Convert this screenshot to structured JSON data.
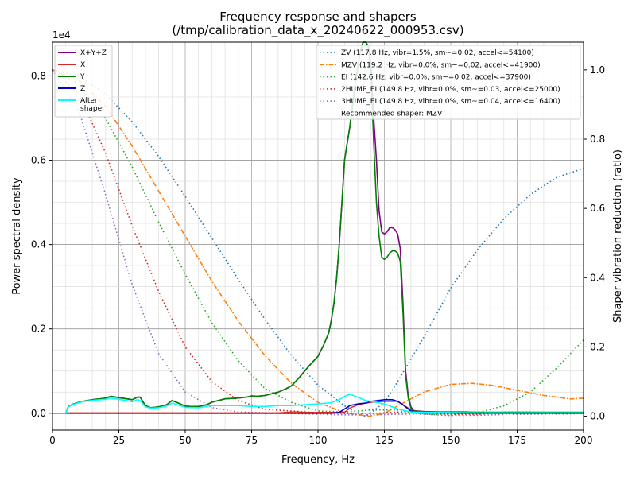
{
  "chart_data": {
    "type": "line",
    "title": "Frequency response and shapers",
    "subtitle": "(/tmp/calibration_data_x_20240622_000953.csv)",
    "xlabel": "Frequency, Hz",
    "ylabel_left": "Power spectral density",
    "ylabel_right": "Shaper vibration reduction (ratio)",
    "multiplier": "1e4",
    "xlim": [
      0,
      200
    ],
    "ylim_left": [
      -0.04,
      0.88
    ],
    "ylim_right": [
      -0.04,
      1.08
    ],
    "x_ticks": [
      0,
      25,
      50,
      75,
      100,
      125,
      150,
      175,
      200
    ],
    "x_tick_labels": [
      "0",
      "25",
      "50",
      "75",
      "100",
      "125",
      "150",
      "175",
      "200"
    ],
    "y_left_ticks": [
      0,
      0.2,
      0.4,
      0.6,
      0.8
    ],
    "y_left_tick_labels": [
      "0.0",
      "0.2",
      "0.4",
      "0.6",
      "0.8"
    ],
    "y_right_ticks": [
      0,
      0.2,
      0.4,
      0.6,
      0.8,
      1.0
    ],
    "y_right_tick_labels": [
      "0.0",
      "0.2",
      "0.4",
      "0.6",
      "0.8",
      "1.0"
    ],
    "grid": true,
    "legend_left": {
      "position": "top-left",
      "entries": [
        "X+Y+Z",
        "X",
        "Y",
        "Z",
        "After\nshaper"
      ]
    },
    "legend_right": {
      "position": "top-right",
      "entries": [
        "ZV (117.8 Hz, vibr=1.5%, sm~=0.02, accel<=54100)",
        "MZV (119.2 Hz, vibr=0.0%, sm~=0.02, accel<=41900)",
        "EI (142.6 Hz, vibr=0.0%, sm~=0.02, accel<=37900)",
        "2HUMP_EI (149.8 Hz, vibr=0.0%, sm~=0.03, accel<=25000)",
        "3HUMP_EI (149.8 Hz, vibr=0.0%, sm~=0.04, accel<=16400)"
      ],
      "note": "Recommended shaper: MZV"
    },
    "psd_series": [
      {
        "name": "X+Y+Z",
        "color": "#800080",
        "width": 1.6,
        "x": [
          0,
          5,
          6,
          8,
          10,
          13,
          16,
          18,
          20,
          22,
          25,
          28,
          30,
          32,
          33,
          35,
          37,
          40,
          43,
          45,
          47,
          50,
          52,
          55,
          58,
          60,
          65,
          70,
          73,
          75,
          77,
          80,
          83,
          85,
          88,
          90,
          93,
          95,
          97,
          100,
          102,
          104,
          105,
          106,
          107,
          108,
          109,
          110,
          111,
          112,
          113,
          114,
          115,
          116,
          117,
          118,
          119,
          120,
          121,
          122,
          123,
          124,
          125,
          126,
          127,
          128,
          129,
          130,
          131,
          132,
          133,
          134,
          135,
          136,
          140,
          145,
          150,
          155,
          160,
          170,
          180,
          190,
          200
        ],
        "y": [
          0,
          0,
          0.016,
          0.022,
          0.026,
          0.03,
          0.033,
          0.034,
          0.036,
          0.04,
          0.037,
          0.034,
          0.032,
          0.038,
          0.038,
          0.018,
          0.013,
          0.015,
          0.02,
          0.03,
          0.025,
          0.017,
          0.016,
          0.016,
          0.02,
          0.026,
          0.034,
          0.036,
          0.038,
          0.041,
          0.04,
          0.042,
          0.047,
          0.05,
          0.058,
          0.065,
          0.085,
          0.1,
          0.115,
          0.135,
          0.16,
          0.19,
          0.22,
          0.26,
          0.32,
          0.4,
          0.5,
          0.6,
          0.64,
          0.68,
          0.73,
          0.78,
          0.82,
          0.86,
          0.88,
          0.88,
          0.87,
          0.82,
          0.7,
          0.6,
          0.48,
          0.43,
          0.425,
          0.43,
          0.44,
          0.44,
          0.435,
          0.425,
          0.39,
          0.26,
          0.1,
          0.04,
          0.015,
          0.006,
          0.004,
          0.003,
          0.003,
          0.003,
          0.002,
          0.002,
          0.002,
          0.002,
          0.002
        ]
      },
      {
        "name": "X",
        "color": "#d62728",
        "width": 1.4,
        "x": [
          0,
          5,
          6,
          10,
          20,
          40,
          60,
          80,
          85,
          88,
          90,
          92,
          95,
          100,
          105,
          110,
          112,
          115,
          118,
          120,
          125,
          130,
          135,
          140,
          160,
          180,
          200
        ],
        "y": [
          0,
          0,
          0.001,
          0.001,
          0.001,
          0.001,
          0.001,
          0.001,
          0.001,
          0.002,
          0.003,
          0.003,
          0.002,
          0.002,
          0.002,
          0.002,
          0.012,
          0.02,
          0.024,
          0.026,
          0.028,
          0.028,
          0.008,
          0.002,
          0.001,
          0.001,
          0.001
        ]
      },
      {
        "name": "Y",
        "color": "#008000",
        "width": 1.6,
        "x": [
          0,
          5,
          6,
          8,
          10,
          13,
          16,
          18,
          20,
          22,
          25,
          28,
          30,
          32,
          33,
          35,
          37,
          40,
          43,
          45,
          47,
          50,
          52,
          55,
          58,
          60,
          65,
          70,
          73,
          75,
          77,
          80,
          83,
          85,
          88,
          90,
          93,
          95,
          97,
          100,
          102,
          104,
          105,
          106,
          107,
          108,
          109,
          110,
          111,
          112,
          113,
          114,
          115,
          116,
          117,
          118,
          119,
          120,
          121,
          122,
          123,
          124,
          125,
          126,
          127,
          128,
          129,
          130,
          131,
          132,
          133,
          134,
          135,
          136,
          140,
          145,
          150,
          155,
          160,
          170,
          180,
          190,
          200
        ],
        "y": [
          0,
          0,
          0.016,
          0.022,
          0.026,
          0.03,
          0.033,
          0.034,
          0.036,
          0.04,
          0.037,
          0.034,
          0.032,
          0.038,
          0.038,
          0.018,
          0.013,
          0.015,
          0.02,
          0.03,
          0.025,
          0.017,
          0.016,
          0.016,
          0.02,
          0.026,
          0.034,
          0.036,
          0.038,
          0.041,
          0.04,
          0.042,
          0.047,
          0.05,
          0.058,
          0.065,
          0.085,
          0.1,
          0.115,
          0.135,
          0.16,
          0.19,
          0.22,
          0.26,
          0.32,
          0.4,
          0.5,
          0.6,
          0.64,
          0.68,
          0.73,
          0.78,
          0.82,
          0.86,
          0.88,
          0.88,
          0.87,
          0.8,
          0.64,
          0.5,
          0.42,
          0.37,
          0.365,
          0.37,
          0.38,
          0.385,
          0.385,
          0.38,
          0.36,
          0.24,
          0.09,
          0.035,
          0.012,
          0.005,
          0.003,
          0.003,
          0.002,
          0.002,
          0.002,
          0.002,
          0.002,
          0.002,
          0.002
        ]
      },
      {
        "name": "Z",
        "color": "#0000cd",
        "width": 1.6,
        "x": [
          0,
          5,
          6,
          10,
          20,
          40,
          60,
          80,
          90,
          100,
          105,
          108,
          110,
          112,
          115,
          118,
          120,
          125,
          128,
          130,
          132,
          135,
          140,
          160,
          180,
          200
        ],
        "y": [
          0,
          0,
          0,
          0,
          0,
          0,
          0,
          0,
          0,
          0,
          0,
          0.002,
          0.01,
          0.018,
          0.022,
          0.024,
          0.028,
          0.032,
          0.032,
          0.028,
          0.02,
          0.005,
          0.001,
          0,
          0,
          0
        ]
      },
      {
        "name": "After\nshaper",
        "color": "#00ffff",
        "width": 1.6,
        "x": [
          0,
          5,
          6,
          8,
          10,
          13,
          16,
          18,
          20,
          22,
          25,
          28,
          30,
          32,
          33,
          35,
          37,
          40,
          43,
          45,
          47,
          50,
          55,
          60,
          65,
          70,
          75,
          80,
          85,
          90,
          95,
          100,
          105,
          108,
          110,
          112,
          115,
          118,
          120,
          125,
          128,
          130,
          135,
          140,
          160,
          180,
          200
        ],
        "y": [
          0,
          0,
          0.015,
          0.021,
          0.025,
          0.029,
          0.031,
          0.032,
          0.033,
          0.036,
          0.033,
          0.03,
          0.027,
          0.032,
          0.03,
          0.015,
          0.012,
          0.013,
          0.017,
          0.024,
          0.02,
          0.014,
          0.013,
          0.018,
          0.018,
          0.018,
          0.016,
          0.016,
          0.018,
          0.018,
          0.02,
          0.022,
          0.025,
          0.032,
          0.04,
          0.045,
          0.038,
          0.03,
          0.028,
          0.022,
          0.015,
          0.01,
          0.003,
          0.002,
          0.001,
          0.001,
          0.001
        ]
      }
    ],
    "shaper_series": [
      {
        "name": "ZV",
        "color": "#1f77b4",
        "dash": "1.5,3",
        "x": [
          0,
          10,
          20,
          30,
          40,
          50,
          60,
          70,
          80,
          90,
          100,
          110,
          115,
          117.8,
          120,
          125,
          130,
          140,
          150,
          160,
          170,
          180,
          190,
          200
        ],
        "y": [
          1.0,
          0.982,
          0.93,
          0.85,
          0.75,
          0.635,
          0.515,
          0.395,
          0.28,
          0.175,
          0.09,
          0.03,
          0.01,
          0.0,
          0.01,
          0.04,
          0.1,
          0.23,
          0.37,
          0.48,
          0.57,
          0.64,
          0.69,
          0.715
        ]
      },
      {
        "name": "MZV",
        "color": "#ff7f0e",
        "dash": "6,2,1.5,2",
        "x": [
          0,
          10,
          20,
          30,
          40,
          50,
          60,
          70,
          80,
          90,
          100,
          110,
          119.2,
          125,
          130,
          140,
          150,
          158,
          165,
          175,
          185,
          195,
          200
        ],
        "y": [
          1.0,
          0.97,
          0.895,
          0.78,
          0.65,
          0.52,
          0.39,
          0.275,
          0.175,
          0.095,
          0.04,
          0.01,
          0.0,
          0.008,
          0.03,
          0.07,
          0.092,
          0.095,
          0.09,
          0.075,
          0.06,
          0.05,
          0.052
        ]
      },
      {
        "name": "EI",
        "color": "#2ca02c",
        "dash": "1.5,3",
        "x": [
          0,
          10,
          20,
          30,
          40,
          50,
          60,
          70,
          80,
          90,
          100,
          110,
          120,
          130,
          135,
          142.6,
          150,
          160,
          170,
          180,
          190,
          200
        ],
        "y": [
          1.0,
          0.96,
          0.86,
          0.72,
          0.56,
          0.41,
          0.27,
          0.16,
          0.08,
          0.04,
          0.015,
          0.012,
          0.018,
          0.018,
          0.01,
          0.005,
          0.005,
          0.01,
          0.03,
          0.07,
          0.14,
          0.22
        ]
      },
      {
        "name": "2HUMP_EI",
        "color": "#d62728",
        "dash": "1.5,3",
        "x": [
          0,
          10,
          20,
          30,
          40,
          50,
          60,
          70,
          80,
          90,
          100,
          110,
          120,
          130,
          140,
          149.8,
          160,
          170,
          180,
          190,
          200
        ],
        "y": [
          1.0,
          0.93,
          0.76,
          0.55,
          0.36,
          0.2,
          0.1,
          0.045,
          0.02,
          0.015,
          0.01,
          0.008,
          0.008,
          0.012,
          0.012,
          0.004,
          0.005,
          0.012,
          0.012,
          0.008,
          0.01
        ]
      },
      {
        "name": "3HUMP_EI",
        "color": "#9467bd",
        "dash": "1.5,3",
        "x": [
          0,
          10,
          20,
          30,
          40,
          50,
          60,
          70,
          80,
          90,
          100,
          110,
          120,
          130,
          140,
          149.8,
          160,
          170,
          180,
          190,
          200
        ],
        "y": [
          1.0,
          0.88,
          0.64,
          0.38,
          0.18,
          0.07,
          0.025,
          0.012,
          0.01,
          0.008,
          0.006,
          0.004,
          0.004,
          0.006,
          0.006,
          0.002,
          0.003,
          0.005,
          0.006,
          0.006,
          0.008
        ]
      }
    ]
  }
}
